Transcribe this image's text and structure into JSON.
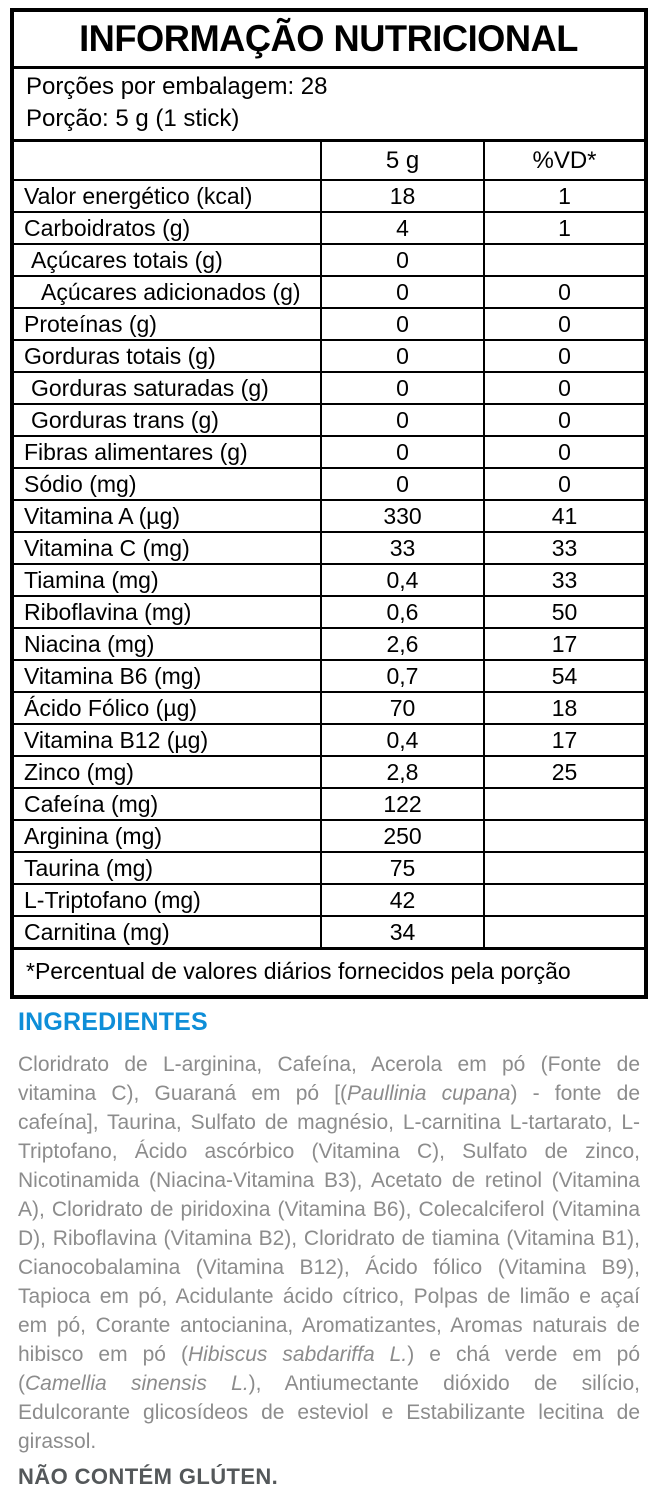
{
  "nutrition_label": {
    "title": "INFORMAÇÃO NUTRICIONAL",
    "servings_per_package": "Porções por embalagem: 28",
    "serving_size": "Porção: 5 g (1 stick)",
    "header": {
      "name": "",
      "amount": "5 g",
      "vd": "%VD*"
    },
    "rows": [
      {
        "name": "Valor energético (kcal)",
        "amount": "18",
        "vd": "1",
        "indent": 0
      },
      {
        "name": "Carboidratos (g)",
        "amount": "4",
        "vd": "1",
        "indent": 0
      },
      {
        "name": "Açúcares totais (g)",
        "amount": "0",
        "vd": "",
        "indent": 1
      },
      {
        "name": "Açúcares adicionados (g)",
        "amount": "0",
        "vd": "0",
        "indent": 2
      },
      {
        "name": "Proteínas (g)",
        "amount": "0",
        "vd": "0",
        "indent": 0
      },
      {
        "name": "Gorduras totais (g)",
        "amount": "0",
        "vd": "0",
        "indent": 0
      },
      {
        "name": "Gorduras saturadas (g)",
        "amount": "0",
        "vd": "0",
        "indent": 1
      },
      {
        "name": "Gorduras trans (g)",
        "amount": "0",
        "vd": "0",
        "indent": 1
      },
      {
        "name": "Fibras alimentares (g)",
        "amount": "0",
        "vd": "0",
        "indent": 0
      },
      {
        "name": "Sódio (mg)",
        "amount": "0",
        "vd": "0",
        "indent": 0
      },
      {
        "name": "Vitamina A (µg)",
        "amount": "330",
        "vd": "41",
        "indent": 0
      },
      {
        "name": "Vitamina C (mg)",
        "amount": "33",
        "vd": "33",
        "indent": 0
      },
      {
        "name": "Tiamina (mg)",
        "amount": "0,4",
        "vd": "33",
        "indent": 0
      },
      {
        "name": "Riboflavina (mg)",
        "amount": "0,6",
        "vd": "50",
        "indent": 0
      },
      {
        "name": "Niacina (mg)",
        "amount": "2,6",
        "vd": "17",
        "indent": 0
      },
      {
        "name": "Vitamina B6 (mg)",
        "amount": "0,7",
        "vd": "54",
        "indent": 0
      },
      {
        "name": "Ácido Fólico (µg)",
        "amount": "70",
        "vd": "18",
        "indent": 0
      },
      {
        "name": "Vitamina B12 (µg)",
        "amount": "0,4",
        "vd": "17",
        "indent": 0
      },
      {
        "name": "Zinco (mg)",
        "amount": "2,8",
        "vd": "25",
        "indent": 0
      },
      {
        "name": "Cafeína (mg)",
        "amount": "122",
        "vd": "",
        "indent": 0
      },
      {
        "name": "Arginina (mg)",
        "amount": "250",
        "vd": "",
        "indent": 0
      },
      {
        "name": "Taurina (mg)",
        "amount": "75",
        "vd": "",
        "indent": 0
      },
      {
        "name": "L-Triptofano  (mg)",
        "amount": "42",
        "vd": "",
        "indent": 0
      },
      {
        "name": "Carnitina (mg)",
        "amount": "34",
        "vd": "",
        "indent": 0
      }
    ],
    "footnote": "*Percentual de valores diários fornecidos pela porção"
  },
  "ingredients": {
    "heading": "INGREDIENTES",
    "segments": [
      {
        "text": "Cloridrato de L-arginina, Cafeína, Acerola em pó (Fonte de vitamina C), Guaraná em pó [(",
        "italic": false
      },
      {
        "text": "Paullinia cupana",
        "italic": true
      },
      {
        "text": ") - fonte de cafeína], Taurina, Sulfato de magnésio, L-carnitina L-tartarato, L- Triptofano, Ácido ascórbico (Vitamina C), Sulfato de zinco, Nicotinamida (Niacina-Vitamina B3), Acetato de retinol (Vitamina A), Cloridrato de piridoxina (Vitamina B6), Colecalciferol (Vitamina D), Riboflavina (Vitamina B2), Cloridrato de tiamina (Vitamina B1), Cianocobalamina (Vitamina B12), Ácido fólico (Vitamina B9), Tapioca em pó, Acidulante ácido cítrico, Polpas de limão e açaí em pó, Corante antocianina, Aromatizantes, Aromas naturais de hibisco em pó (",
        "italic": false
      },
      {
        "text": "Hibiscus sabdariffa L.",
        "italic": true
      },
      {
        "text": ") e chá verde em pó (",
        "italic": false
      },
      {
        "text": "Camellia sinensis L.",
        "italic": true
      },
      {
        "text": "), Antiumectante dióxido de silício, Edulcorante glicosídeos de esteviol e Estabilizante lecitina de girassol.",
        "italic": false
      }
    ],
    "gluten_notice": "NÃO CONTÉM GLÚTEN."
  },
  "colors": {
    "accent_blue": "#0E8ED8",
    "ingredients_gray": "#8C8C8C",
    "gluten_gray": "#54585A",
    "table_text": "#000000"
  }
}
